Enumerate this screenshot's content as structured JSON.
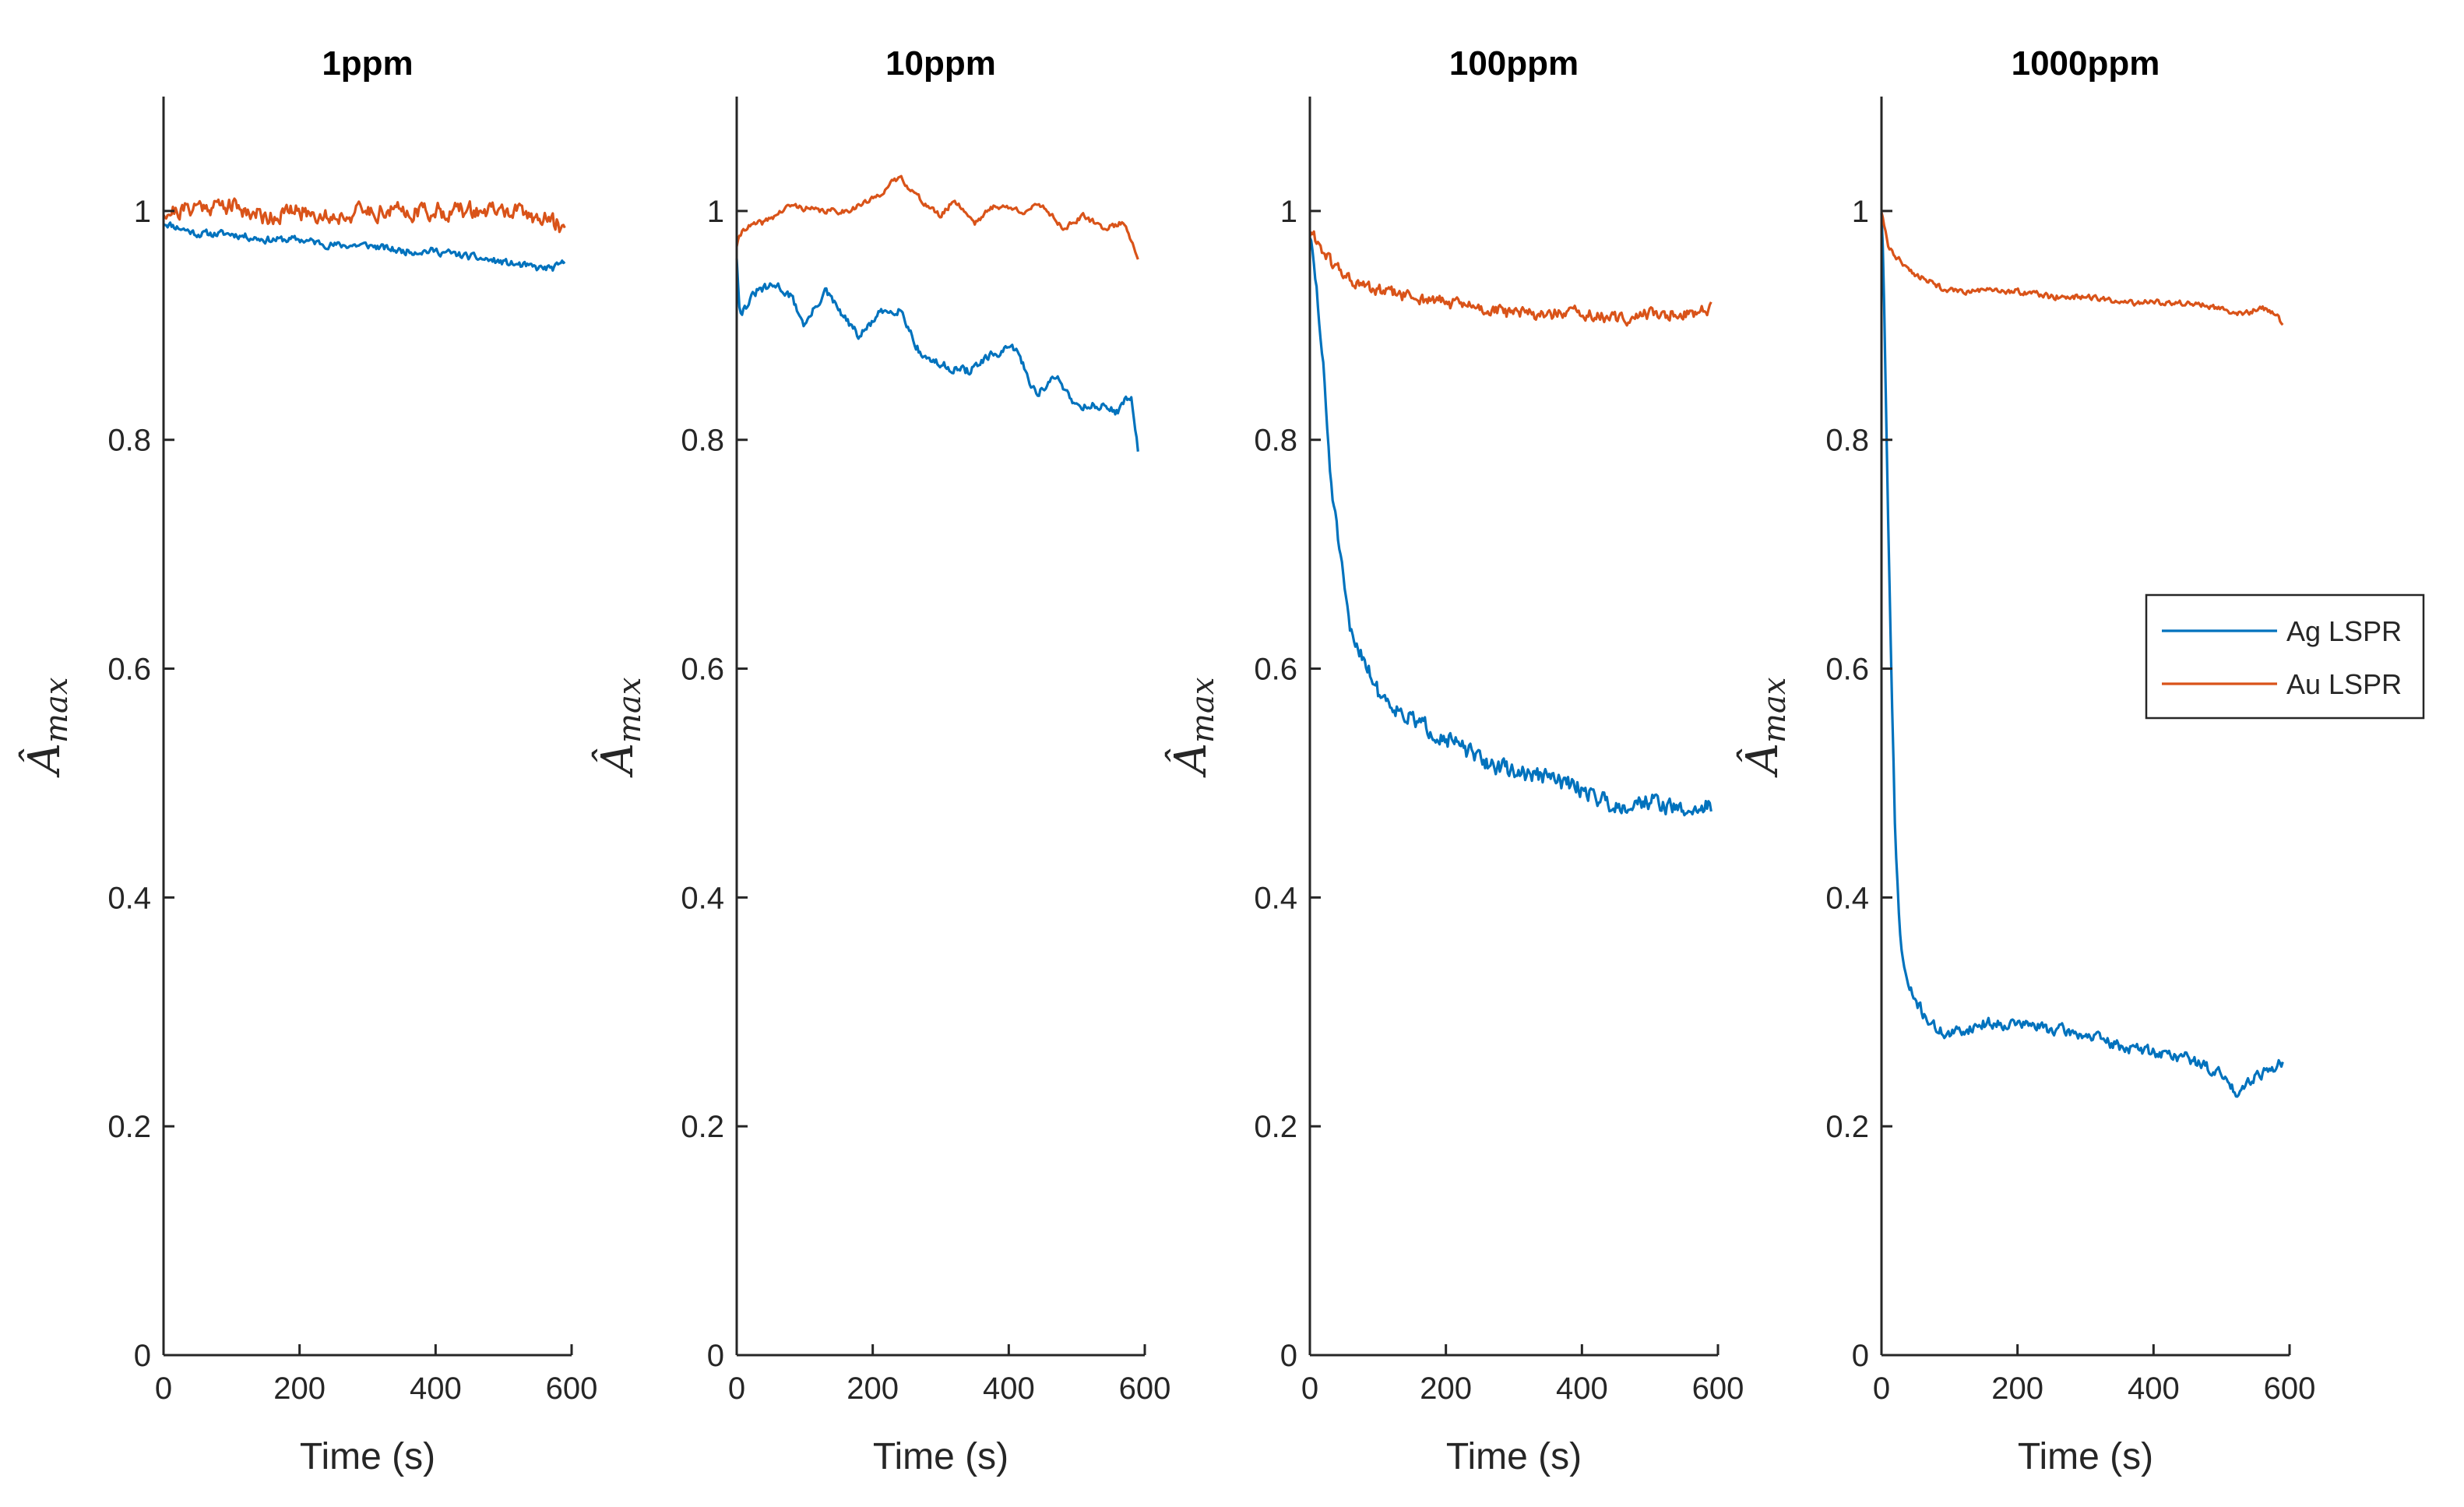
{
  "chart_data": [
    {
      "type": "line",
      "title": "1ppm",
      "xlabel": "Time (s)",
      "ylabel_main": "Â",
      "ylabel_sub": "max",
      "xlim": [
        0,
        600
      ],
      "ylim": [
        0,
        1.1
      ],
      "xticks": [
        0,
        200,
        400,
        600
      ],
      "yticks": [
        0,
        0.2,
        0.4,
        0.6,
        0.8,
        1
      ],
      "ytick_labels": [
        "0",
        "0.2",
        "0.4",
        "0.6",
        "0.8",
        "1"
      ],
      "series": [
        {
          "name": "Ag LSPR",
          "color": "#0072BD",
          "x": [
            0,
            25,
            50,
            100,
            150,
            200,
            250,
            300,
            350,
            400,
            450,
            500,
            550,
            575,
            590
          ],
          "y": [
            0.99,
            0.985,
            0.98,
            0.98,
            0.975,
            0.975,
            0.97,
            0.97,
            0.965,
            0.965,
            0.96,
            0.955,
            0.95,
            0.95,
            0.955
          ],
          "noise": 0.005,
          "seed": 11
        },
        {
          "name": "Au LSPR",
          "color": "#D95319",
          "x": [
            0,
            25,
            50,
            100,
            150,
            200,
            250,
            300,
            350,
            400,
            450,
            500,
            550,
            575,
            590
          ],
          "y": [
            1.0,
            1.0,
            1.005,
            1.005,
            0.995,
            1.0,
            0.995,
            1.0,
            1.0,
            1.0,
            1.0,
            1.0,
            0.995,
            0.99,
            0.985
          ],
          "noise": 0.012,
          "seed": 21
        }
      ]
    },
    {
      "type": "line",
      "title": "10ppm",
      "xlabel": "Time (s)",
      "ylabel_main": "Â",
      "ylabel_sub": "max",
      "xlim": [
        0,
        600
      ],
      "ylim": [
        0,
        1.1
      ],
      "xticks": [
        0,
        200,
        400,
        600
      ],
      "yticks": [
        0,
        0.2,
        0.4,
        0.6,
        0.8,
        1
      ],
      "ytick_labels": [
        "0",
        "0.2",
        "0.4",
        "0.6",
        "0.8",
        "1"
      ],
      "series": [
        {
          "name": "Ag LSPR",
          "color": "#0072BD",
          "x": [
            0,
            5,
            30,
            60,
            80,
            100,
            130,
            160,
            180,
            210,
            240,
            270,
            300,
            340,
            380,
            410,
            440,
            470,
            500,
            530,
            560,
            580,
            590
          ],
          "y": [
            0.96,
            0.91,
            0.93,
            0.935,
            0.925,
            0.9,
            0.93,
            0.905,
            0.89,
            0.91,
            0.915,
            0.875,
            0.865,
            0.86,
            0.875,
            0.88,
            0.84,
            0.855,
            0.83,
            0.83,
            0.825,
            0.84,
            0.79
          ],
          "noise": 0.006,
          "seed": 31
        },
        {
          "name": "Au LSPR",
          "color": "#D95319",
          "x": [
            0,
            10,
            40,
            80,
            120,
            160,
            200,
            240,
            270,
            300,
            320,
            350,
            380,
            420,
            450,
            480,
            510,
            540,
            570,
            590
          ],
          "y": [
            0.97,
            0.985,
            0.99,
            1.005,
            1.0,
            1.0,
            1.01,
            1.03,
            1.01,
            0.995,
            1.01,
            0.99,
            1.005,
            1.0,
            1.005,
            0.985,
            0.995,
            0.985,
            0.99,
            0.96
          ],
          "noise": 0.004,
          "seed": 41
        }
      ]
    },
    {
      "type": "line",
      "title": "100ppm",
      "xlabel": "Time (s)",
      "ylabel_main": "Â",
      "ylabel_sub": "max",
      "xlim": [
        0,
        600
      ],
      "ylim": [
        0,
        1.1
      ],
      "xticks": [
        0,
        200,
        400,
        600
      ],
      "yticks": [
        0,
        0.2,
        0.4,
        0.6,
        0.8,
        1
      ],
      "ytick_labels": [
        "0",
        "0.2",
        "0.4",
        "0.6",
        "0.8",
        "1"
      ],
      "series": [
        {
          "name": "Ag LSPR",
          "color": "#0072BD",
          "x": [
            0,
            10,
            20,
            30,
            40,
            50,
            60,
            70,
            80,
            100,
            120,
            150,
            200,
            250,
            300,
            350,
            400,
            450,
            500,
            550,
            590
          ],
          "y": [
            0.98,
            0.93,
            0.86,
            0.77,
            0.72,
            0.67,
            0.63,
            0.62,
            0.61,
            0.58,
            0.57,
            0.555,
            0.54,
            0.52,
            0.51,
            0.505,
            0.495,
            0.48,
            0.485,
            0.475,
            0.48
          ],
          "noise": 0.012,
          "seed": 51
        },
        {
          "name": "Au LSPR",
          "color": "#D95319",
          "x": [
            0,
            10,
            20,
            30,
            50,
            70,
            100,
            150,
            200,
            250,
            300,
            350,
            400,
            450,
            500,
            550,
            590
          ],
          "y": [
            0.98,
            0.975,
            0.965,
            0.955,
            0.945,
            0.935,
            0.93,
            0.925,
            0.92,
            0.915,
            0.91,
            0.91,
            0.91,
            0.905,
            0.91,
            0.91,
            0.915
          ],
          "noise": 0.009,
          "seed": 61
        }
      ]
    },
    {
      "type": "line",
      "title": "1000ppm",
      "xlabel": "Time (s)",
      "ylabel_main": "Â",
      "ylabel_sub": "max",
      "xlim": [
        0,
        600
      ],
      "ylim": [
        0,
        1.1
      ],
      "xticks": [
        0,
        200,
        400,
        600
      ],
      "yticks": [
        0,
        0.2,
        0.4,
        0.6,
        0.8,
        1
      ],
      "ytick_labels": [
        "0",
        "0.2",
        "0.4",
        "0.6",
        "0.8",
        "1"
      ],
      "legend": {
        "position": "right",
        "entries": [
          "Ag LSPR",
          "Au LSPR"
        ]
      },
      "series": [
        {
          "name": "Ag LSPR",
          "color": "#0072BD",
          "x": [
            0,
            3,
            6,
            10,
            15,
            20,
            25,
            30,
            40,
            50,
            60,
            80,
            100,
            150,
            200,
            250,
            300,
            350,
            400,
            450,
            500,
            520,
            550,
            590
          ],
          "y": [
            1.0,
            0.95,
            0.85,
            0.72,
            0.58,
            0.46,
            0.39,
            0.35,
            0.32,
            0.31,
            0.3,
            0.285,
            0.28,
            0.29,
            0.29,
            0.285,
            0.28,
            0.27,
            0.265,
            0.26,
            0.245,
            0.23,
            0.245,
            0.255
          ],
          "noise": 0.008,
          "seed": 71
        },
        {
          "name": "Au LSPR",
          "color": "#D95319",
          "x": [
            0,
            5,
            10,
            20,
            30,
            50,
            80,
            100,
            150,
            200,
            250,
            300,
            350,
            400,
            450,
            500,
            530,
            560,
            580,
            590
          ],
          "y": [
            1.0,
            0.985,
            0.97,
            0.96,
            0.955,
            0.945,
            0.935,
            0.93,
            0.93,
            0.93,
            0.925,
            0.925,
            0.92,
            0.92,
            0.92,
            0.915,
            0.91,
            0.915,
            0.91,
            0.9
          ],
          "noise": 0.004,
          "seed": 81
        }
      ]
    }
  ]
}
